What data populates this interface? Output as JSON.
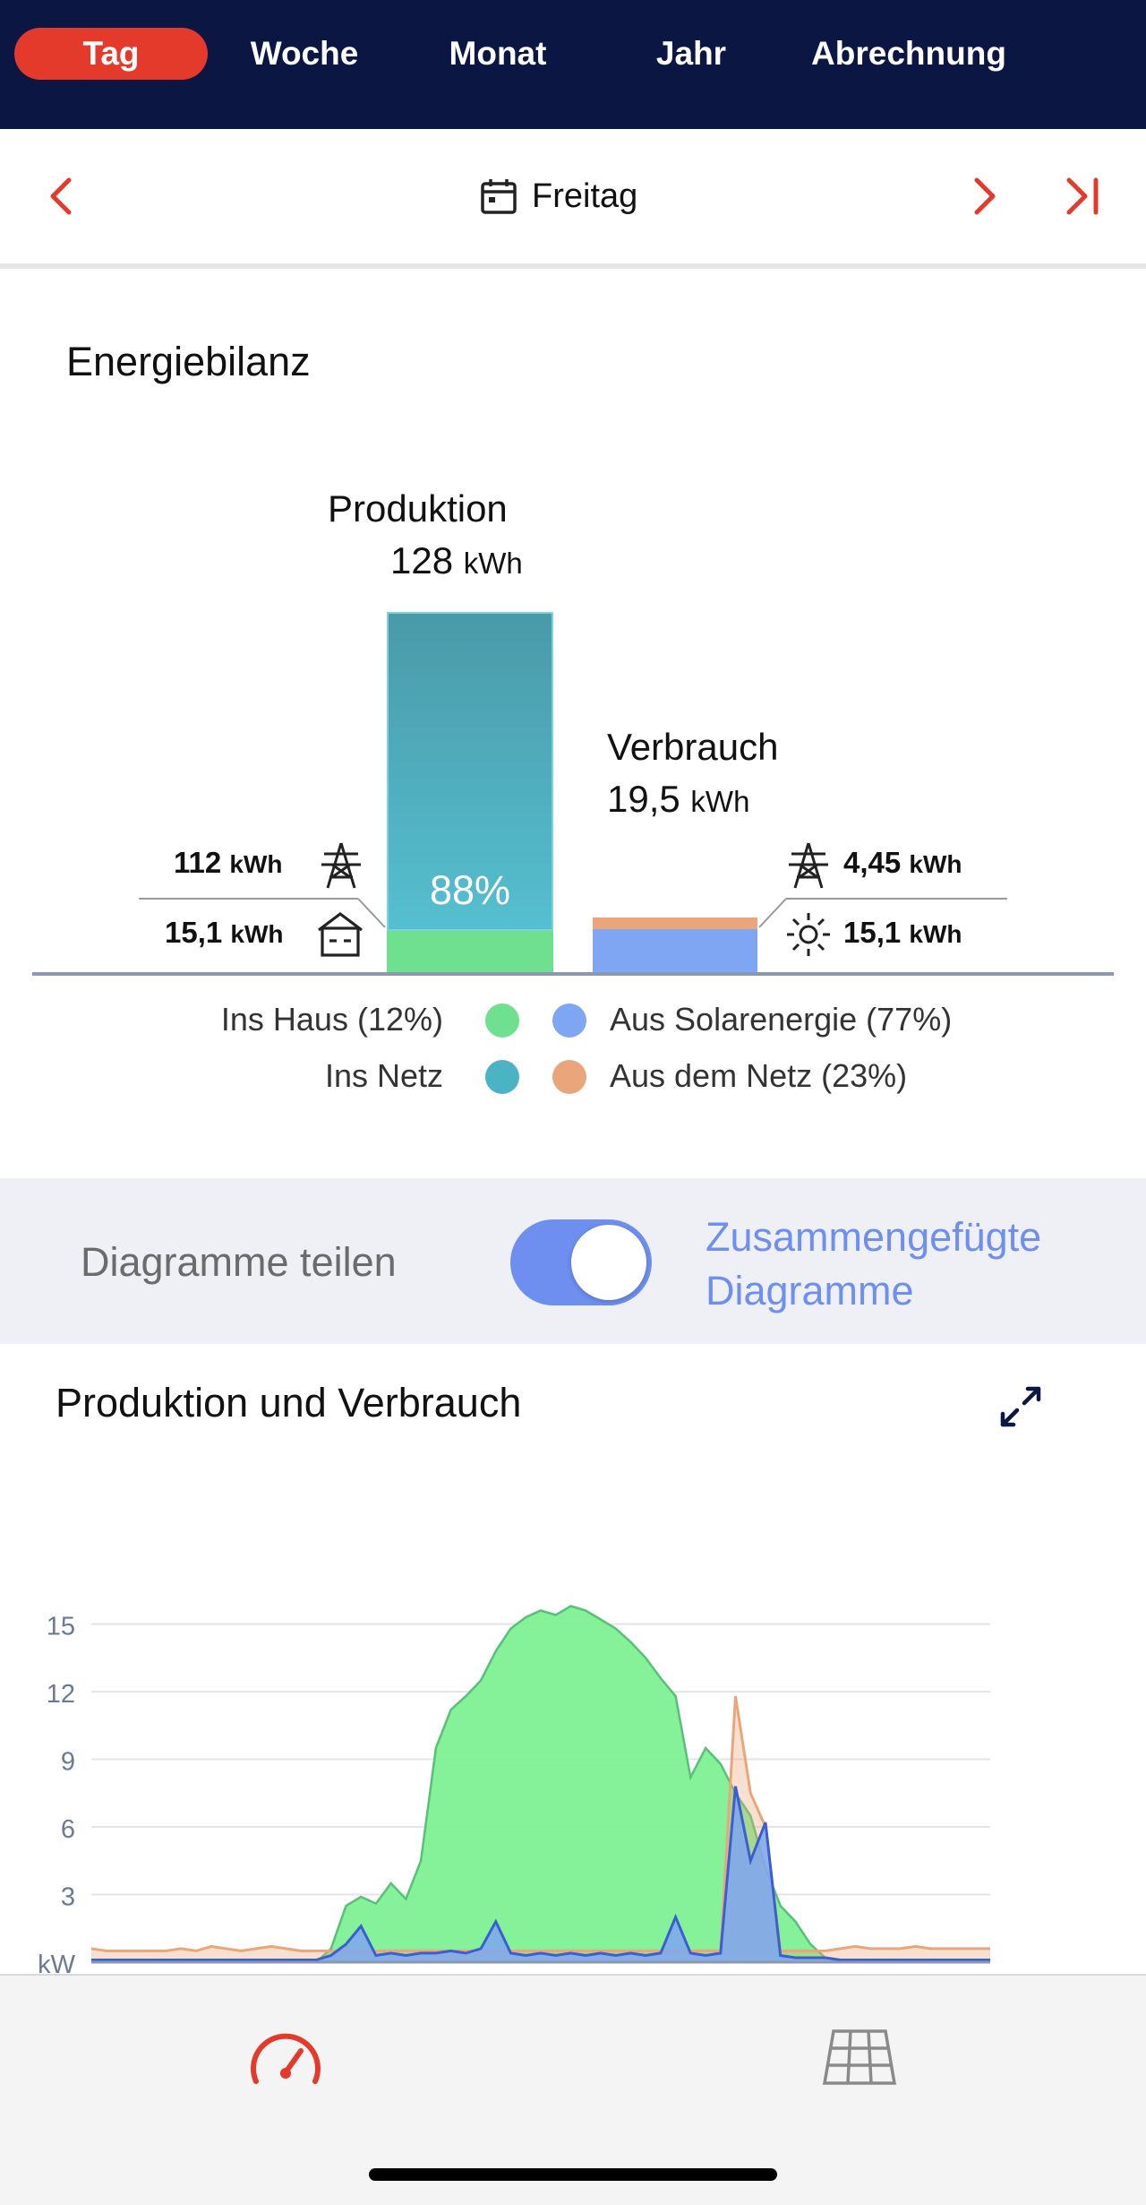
{
  "tabs": [
    "Tag",
    "Woche",
    "Monat",
    "Jahr",
    "Abrechnung"
  ],
  "date": {
    "label": "Freitag"
  },
  "balance": {
    "title": "Energiebilanz",
    "production": {
      "label": "Produktion",
      "value": "128",
      "unit": "kWh",
      "percent": "88%"
    },
    "consumption": {
      "label": "Verbrauch",
      "value": "19,5",
      "unit": "kWh"
    },
    "left": {
      "grid_value": "112",
      "grid_unit": "kWh",
      "house_value": "15,1",
      "house_unit": "kWh"
    },
    "right": {
      "grid_value": "4,45",
      "grid_unit": "kWh",
      "solar_value": "15,1",
      "solar_unit": "kWh"
    },
    "legend": {
      "ins_haus": "Ins Haus (12%)",
      "ins_netz": "Ins Netz",
      "aus_solar": "Aus Solarenergie (77%)",
      "aus_netz": "Aus dem Netz (23%)"
    }
  },
  "toggle": {
    "left_label": "Diagramme teilen",
    "right_label_1": "Zusammengefügte",
    "right_label_2": "Diagramme",
    "on": true
  },
  "chart": {
    "title": "Produktion und Verbrauch"
  },
  "colors": {
    "green": "#6ee08f",
    "teal": "#4bb4c4",
    "blue": "#7fa6f2",
    "orange": "#eba57a",
    "navy": "#0b1642",
    "red": "#e43a2b"
  },
  "chart_data": {
    "type": "area",
    "ylabel": "kW",
    "yticks": [
      "15",
      "12",
      "9",
      "6",
      "3"
    ],
    "ylim": [
      0,
      15.5
    ],
    "x": [
      0,
      1,
      2,
      3,
      4,
      5,
      6,
      7,
      8,
      9,
      10,
      11,
      12,
      13,
      14,
      15,
      16,
      17,
      18,
      19,
      20,
      21,
      22,
      23,
      24,
      25,
      26,
      27,
      28,
      29,
      30,
      31,
      32,
      33,
      34,
      35,
      36,
      37,
      38,
      39,
      40,
      41,
      42,
      43,
      44,
      45,
      46,
      47,
      48,
      49,
      50,
      51,
      52,
      53,
      54,
      55,
      56,
      57,
      58,
      59,
      60
    ],
    "series": [
      {
        "name": "Produktion",
        "color": "#6ee08f",
        "values": [
          0.0,
          0.0,
          0.0,
          0.0,
          0.0,
          0.0,
          0.0,
          0.0,
          0.0,
          0.0,
          0.0,
          0.0,
          0.0,
          0.0,
          0.0,
          0.0,
          0.6,
          2.5,
          2.9,
          2.6,
          3.5,
          2.8,
          4.5,
          9.5,
          11.2,
          11.8,
          12.5,
          13.8,
          14.8,
          15.3,
          15.6,
          15.4,
          15.8,
          15.6,
          15.2,
          14.8,
          14.2,
          13.5,
          12.6,
          11.8,
          8.2,
          9.5,
          8.8,
          7.5,
          6.5,
          4.2,
          2.5,
          1.8,
          0.8,
          0.2,
          0.0,
          0.0,
          0.0,
          0.0,
          0.0,
          0.0,
          0.0,
          0.0,
          0.0,
          0.0,
          0.0
        ]
      },
      {
        "name": "Verbrauch",
        "color": "#7fa6f2",
        "values": [
          0.1,
          0.1,
          0.1,
          0.1,
          0.1,
          0.1,
          0.1,
          0.1,
          0.1,
          0.1,
          0.1,
          0.1,
          0.1,
          0.1,
          0.1,
          0.1,
          0.3,
          0.8,
          1.6,
          0.3,
          0.4,
          0.3,
          0.4,
          0.4,
          0.5,
          0.4,
          0.6,
          1.8,
          0.4,
          0.3,
          0.4,
          0.3,
          0.4,
          0.3,
          0.4,
          0.3,
          0.4,
          0.3,
          0.4,
          2.0,
          0.4,
          0.3,
          0.4,
          7.8,
          4.5,
          6.2,
          0.3,
          0.2,
          0.2,
          0.2,
          0.1,
          0.1,
          0.1,
          0.1,
          0.1,
          0.1,
          0.1,
          0.1,
          0.1,
          0.1,
          0.1
        ]
      },
      {
        "name": "Netz",
        "color": "#eba57a",
        "values": [
          0.6,
          0.5,
          0.5,
          0.5,
          0.5,
          0.5,
          0.6,
          0.5,
          0.7,
          0.6,
          0.5,
          0.6,
          0.7,
          0.6,
          0.5,
          0.5,
          0.5,
          0.5,
          0.5,
          0.5,
          0.5,
          0.5,
          0.5,
          0.5,
          0.5,
          0.5,
          0.5,
          0.5,
          0.5,
          0.5,
          0.5,
          0.5,
          0.5,
          0.5,
          0.5,
          0.5,
          0.5,
          0.5,
          0.5,
          0.5,
          0.5,
          0.5,
          0.5,
          11.8,
          7.5,
          6.0,
          0.5,
          0.5,
          0.5,
          0.5,
          0.6,
          0.7,
          0.6,
          0.6,
          0.6,
          0.7,
          0.6,
          0.6,
          0.6,
          0.6,
          0.6
        ]
      }
    ]
  }
}
